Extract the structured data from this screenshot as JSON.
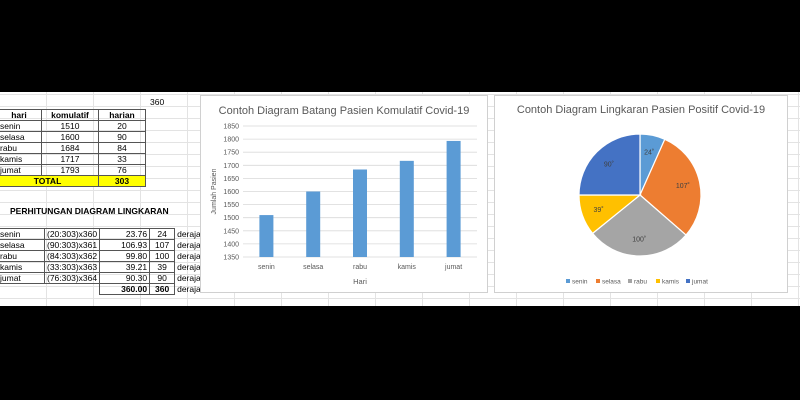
{
  "sheet": {
    "top_value": "360",
    "table": {
      "headers": [
        "hari",
        "komulatif",
        "harian"
      ],
      "rows": [
        [
          "senin",
          "1510",
          "20"
        ],
        [
          "selasa",
          "1600",
          "90"
        ],
        [
          "rabu",
          "1684",
          "84"
        ],
        [
          "kamis",
          "1717",
          "33"
        ],
        [
          "jumat",
          "1793",
          "76"
        ]
      ],
      "total_label": "TOTAL",
      "total_value": "303"
    },
    "section_title": "PERHITUNGAN DIAGRAM LINGKARAN",
    "calc_rows": [
      [
        "senin",
        "(20:303)x360",
        "23.76",
        "24",
        "derajat"
      ],
      [
        "selasa",
        "(90:303)x361",
        "106.93",
        "107",
        "derajat"
      ],
      [
        "rabu",
        "(84:303)x362",
        "99.80",
        "100",
        "derajat"
      ],
      [
        "kamis",
        "(33:303)x363",
        "39.21",
        "39",
        "derajat"
      ],
      [
        "jumat",
        "(76:303)x364",
        "90.30",
        "90",
        "derajat"
      ]
    ],
    "calc_total": [
      "360.00",
      "360",
      "derajat"
    ]
  },
  "chart_data": [
    {
      "type": "bar",
      "title": "Contoh Diagram Batang Pasien Komulatif Covid-19",
      "xlabel": "Hari",
      "ylabel": "Jumlah Pasien",
      "categories": [
        "senin",
        "selasa",
        "rabu",
        "kamis",
        "jumat"
      ],
      "values": [
        1510,
        1600,
        1684,
        1717,
        1793
      ],
      "ylim": [
        1350,
        1850
      ],
      "yticks": [
        "1350",
        "1400",
        "1450",
        "1500",
        "1550",
        "1600",
        "1650",
        "1700",
        "1750",
        "1800",
        "1850"
      ],
      "color": "#5b9bd5",
      "grid": true
    },
    {
      "type": "pie",
      "title": "Contoh Diagram Lingkaran Pasien Positif Covid-19",
      "categories": [
        "senin",
        "selasa",
        "rabu",
        "kamis",
        "jumat"
      ],
      "values": [
        24,
        107,
        100,
        39,
        90
      ],
      "labels": [
        "24˚",
        "107˚",
        "100˚",
        "39˚",
        "90˚"
      ],
      "colors": [
        "#5b9bd5",
        "#ed7d31",
        "#a5a5a5",
        "#ffc000",
        "#4472c4"
      ],
      "legend": "bottom"
    }
  ]
}
